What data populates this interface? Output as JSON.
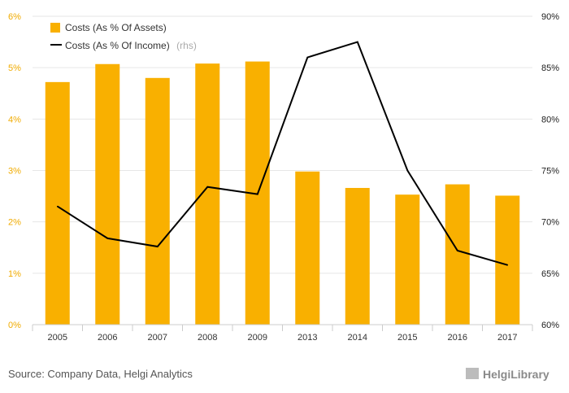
{
  "chart_data": {
    "type": "bar",
    "categories": [
      "2005",
      "2006",
      "2007",
      "2008",
      "2009",
      "2013",
      "2014",
      "2015",
      "2016",
      "2017"
    ],
    "series": [
      {
        "name": "Costs (As % Of Assets)",
        "kind": "bar",
        "axis": "left",
        "color": "#f9b000",
        "values": [
          4.72,
          5.07,
          4.8,
          5.08,
          5.12,
          2.98,
          2.66,
          2.53,
          2.73,
          2.51
        ]
      },
      {
        "name": "Costs (As % Of Income)",
        "kind": "line",
        "axis": "right",
        "color": "#000000",
        "values": [
          71.5,
          68.4,
          67.6,
          73.4,
          72.7,
          86.0,
          87.5,
          75.0,
          67.2,
          65.8
        ]
      }
    ],
    "legend_rhs_suffix": "(rhs)",
    "left_axis": {
      "ylim": [
        0,
        6
      ],
      "ticks": [
        "0%",
        "1%",
        "2%",
        "3%",
        "4%",
        "5%",
        "6%"
      ]
    },
    "right_axis": {
      "ylim": [
        60,
        90
      ],
      "ticks": [
        "60%",
        "65%",
        "70%",
        "75%",
        "80%",
        "85%",
        "90%"
      ]
    },
    "grid": true,
    "legend_position": "top-left"
  },
  "footer": {
    "source": "Source: Company Data, Helgi Analytics",
    "brand": "HelgiLibrary"
  }
}
